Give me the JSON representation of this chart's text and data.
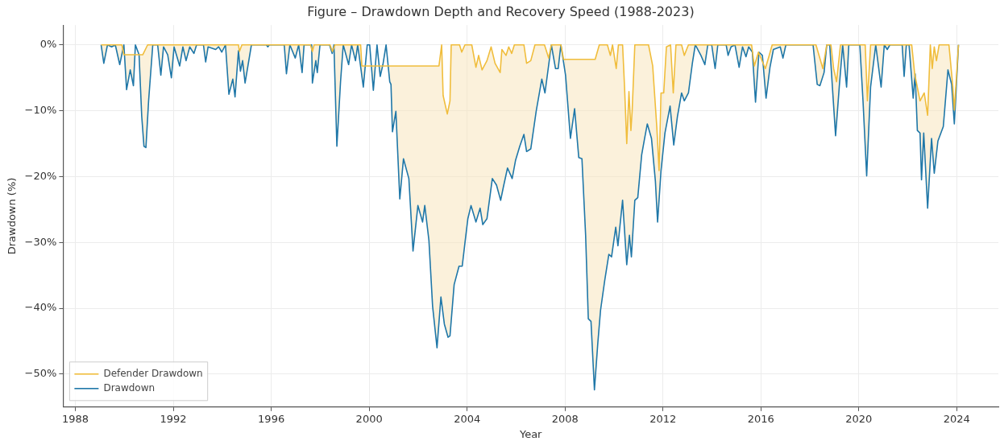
{
  "chart_data": {
    "type": "line",
    "title": "Figure – Drawdown Depth and Recovery Speed (1988-2023)",
    "xlabel": "Year",
    "ylabel": "Drawdown (%)",
    "xlim": [
      1987.5,
      2025.7
    ],
    "ylim": [
      -55,
      3
    ],
    "xticks": [
      1988,
      1992,
      1996,
      2000,
      2004,
      2008,
      2012,
      2016,
      2020,
      2024
    ],
    "yticks": [
      {
        "value": 0,
        "label": "0%"
      },
      {
        "value": -10,
        "label": "−10%"
      },
      {
        "value": -20,
        "label": "−20%"
      },
      {
        "value": -30,
        "label": "−30%"
      },
      {
        "value": -40,
        "label": "−40%"
      },
      {
        "value": -50,
        "label": "−50%"
      }
    ],
    "grid": true,
    "legend": "bottom left",
    "marker": "none",
    "line_style": "solid",
    "series": [
      {
        "name": "Defender Drawdown",
        "color": "#f0bd3c",
        "x": [
          1989.05,
          1989.9,
          1989.98,
          1990.75,
          1990.95,
          1994.66,
          1994.7,
          1994.8,
          1997.6,
          1997.68,
          1997.75,
          1998.4,
          1998.5,
          1998.6,
          1999.65,
          1999.7,
          2002.85,
          2002.96,
          2003.02,
          2003.19,
          2003.3,
          2003.35,
          2003.69,
          2003.78,
          2003.91,
          2004.19,
          2004.36,
          2004.47,
          2004.61,
          2004.81,
          2004.98,
          2005.14,
          2005.35,
          2005.42,
          2005.59,
          2005.7,
          2005.82,
          2005.93,
          2006.32,
          2006.43,
          2006.6,
          2006.77,
          2007.16,
          2007.33,
          2007.44,
          2007.83,
          2007.94,
          2009.23,
          2009.4,
          2009.73,
          2009.85,
          2009.94,
          2010.09,
          2010.18,
          2010.35,
          2010.43,
          2010.52,
          2010.61,
          2010.69,
          2010.74,
          2010.85,
          2011.41,
          2011.58,
          2011.75,
          2011.84,
          2011.92,
          2012.03,
          2012.14,
          2012.31,
          2012.42,
          2012.53,
          2012.76,
          2012.87,
          2013.04,
          2015.62,
          2015.73,
          2015.9,
          2016.18,
          2016.34,
          2016.46,
          2018.25,
          2018.53,
          2018.69,
          2018.86,
          2018.97,
          2019.09,
          2019.25,
          2020.26,
          2020.35,
          2020.48,
          2022.16,
          2022.28,
          2022.5,
          2022.67,
          2022.81,
          2022.92,
          2023.0,
          2023.08,
          2023.17,
          2023.28,
          2023.68,
          2023.84,
          2023.9,
          2024.07
        ],
        "values": [
          0,
          0,
          -1.5,
          -1.5,
          0,
          0,
          -1,
          0,
          0,
          -1,
          0,
          0,
          -1,
          0,
          0,
          -3.2,
          -3.2,
          0,
          -7.7,
          -10.5,
          -8.5,
          0,
          0,
          -1.1,
          0,
          0,
          -3.4,
          -1.6,
          -3.8,
          -2.4,
          -0.3,
          -2.8,
          -4.2,
          -0.7,
          -1.6,
          -0.3,
          -1.3,
          0,
          0,
          -2.8,
          -2.4,
          0,
          0,
          -2,
          0,
          0,
          -2.2,
          -2.2,
          0,
          0,
          -1.6,
          0,
          -3.6,
          0,
          0,
          -6.4,
          -15,
          -7.1,
          -13,
          -10.1,
          0,
          0,
          -3.2,
          -12.6,
          -19.1,
          -7.3,
          -7.3,
          -0.3,
          0,
          -7.3,
          0,
          0,
          -1.6,
          0,
          0,
          -3.2,
          -1.1,
          -3.6,
          -1.6,
          0,
          0,
          -3.6,
          0,
          0,
          -3.6,
          -5.6,
          0,
          0,
          -8.5,
          0,
          0,
          -4.4,
          -8.5,
          -7.3,
          -10.7,
          0,
          -3.6,
          -0.3,
          -2.4,
          0,
          0,
          -6.4,
          -9.9,
          0
        ]
      },
      {
        "name": "Drawdown",
        "color": "#1f77a8",
        "x": [
          1989.05,
          1989.16,
          1989.31,
          1989.48,
          1989.63,
          1989.81,
          1989.98,
          1990.09,
          1990.24,
          1990.37,
          1990.45,
          1990.6,
          1990.71,
          1990.8,
          1990.88,
          1990.99,
          1991.16,
          1991.36,
          1991.49,
          1991.6,
          1991.77,
          1991.92,
          1992.03,
          1992.26,
          1992.39,
          1992.52,
          1992.67,
          1992.84,
          1992.95,
          1993.23,
          1993.32,
          1993.42,
          1993.73,
          1993.85,
          1993.98,
          1994.13,
          1994.27,
          1994.43,
          1994.52,
          1994.66,
          1994.74,
          1994.83,
          1994.93,
          1995.19,
          1995.8,
          1995.86,
          1995.92,
          1996.53,
          1996.62,
          1996.76,
          1996.98,
          1997.12,
          1997.26,
          1997.34,
          1997.65,
          1997.68,
          1997.82,
          1997.88,
          1997.99,
          1998.38,
          1998.49,
          1998.56,
          1998.68,
          1998.83,
          1998.94,
          1999.16,
          1999.28,
          1999.44,
          1999.53,
          1999.64,
          1999.76,
          1999.92,
          2000.02,
          2000.17,
          2000.32,
          2000.45,
          2000.56,
          2000.69,
          2000.84,
          2000.89,
          2000.95,
          2001.09,
          2001.25,
          2001.4,
          2001.62,
          2001.79,
          2001.99,
          2002.18,
          2002.27,
          2002.44,
          2002.59,
          2002.77,
          2002.93,
          2003.07,
          2003.22,
          2003.3,
          2003.47,
          2003.67,
          2003.8,
          2003.91,
          2004.03,
          2004.16,
          2004.36,
          2004.53,
          2004.64,
          2004.81,
          2005.03,
          2005.2,
          2005.37,
          2005.48,
          2005.65,
          2005.84,
          2005.98,
          2006.15,
          2006.32,
          2006.43,
          2006.6,
          2006.82,
          2007.05,
          2007.18,
          2007.44,
          2007.61,
          2007.72,
          2007.83,
          2008.02,
          2008.22,
          2008.39,
          2008.56,
          2008.69,
          2008.84,
          2008.95,
          2009.06,
          2009.2,
          2009.34,
          2009.45,
          2009.62,
          2009.79,
          2009.9,
          2010.07,
          2010.16,
          2010.35,
          2010.52,
          2010.63,
          2010.71,
          2010.85,
          2010.97,
          2011.13,
          2011.25,
          2011.36,
          2011.53,
          2011.69,
          2011.78,
          2011.92,
          2012.08,
          2012.29,
          2012.44,
          2012.59,
          2012.76,
          2012.87,
          2013.04,
          2013.2,
          2013.32,
          2013.55,
          2013.71,
          2013.83,
          2013.99,
          2014.13,
          2014.24,
          2014.58,
          2014.66,
          2014.78,
          2014.94,
          2015.11,
          2015.25,
          2015.39,
          2015.5,
          2015.65,
          2015.78,
          2015.92,
          2016.06,
          2016.21,
          2016.37,
          2016.51,
          2016.79,
          2016.9,
          2017.02,
          2018.13,
          2018.3,
          2018.41,
          2018.58,
          2018.69,
          2018.81,
          2018.92,
          2019.05,
          2019.2,
          2019.34,
          2019.5,
          2019.59,
          2020.04,
          2020.17,
          2020.32,
          2020.48,
          2020.69,
          2020.91,
          2021.04,
          2021.16,
          2021.27,
          2021.77,
          2021.85,
          2021.94,
          2022.05,
          2022.22,
          2022.3,
          2022.39,
          2022.5,
          2022.56,
          2022.65,
          2022.81,
          2022.97,
          2023.08,
          2023.23,
          2023.45,
          2023.64,
          2023.79,
          2023.9,
          2024.07
        ],
        "values": [
          0,
          -2.8,
          0,
          -0.3,
          0,
          -3,
          0,
          -6.8,
          -3.8,
          -6.2,
          0,
          -1.5,
          -10.9,
          -15.4,
          -15.6,
          -8.5,
          0,
          0,
          -4.6,
          -0.3,
          -1.5,
          -5,
          -0.3,
          -3.2,
          -0.3,
          -2.4,
          -0.3,
          -1.3,
          0,
          0,
          -2.6,
          -0.3,
          -0.7,
          -0.3,
          -1.1,
          0,
          -7.5,
          -5.2,
          -7.9,
          -0.9,
          -4,
          -2.4,
          -5.8,
          0,
          0,
          -0.3,
          0,
          0,
          -4.4,
          0,
          -2,
          0,
          -4.2,
          0,
          0,
          -5.8,
          -2.4,
          -4.2,
          0,
          0,
          -1.3,
          0,
          -15.4,
          -5.6,
          0,
          -3,
          0,
          -2.4,
          0,
          -3,
          -6.4,
          0,
          0,
          -6.9,
          0,
          -4.8,
          -3,
          0,
          -5.6,
          -6,
          -13.2,
          -10.1,
          -23.4,
          -17.3,
          -20.3,
          -31.3,
          -24.4,
          -26.9,
          -24.4,
          -29.7,
          -39.7,
          -46,
          -38.3,
          -42.4,
          -44.4,
          -44.2,
          -36.4,
          -33.6,
          -33.6,
          -30.1,
          -26.4,
          -24.4,
          -26.9,
          -24.8,
          -27.3,
          -26.4,
          -20.3,
          -21.3,
          -23.6,
          -21.6,
          -18.7,
          -20.3,
          -17.5,
          -15.4,
          -13.6,
          -16.2,
          -15.8,
          -10.1,
          -5.2,
          -7.3,
          0,
          -3.6,
          -3.6,
          0,
          -4.6,
          -14.2,
          -9.7,
          -17.1,
          -17.3,
          -28.9,
          -41.6,
          -42,
          -52.4,
          -45.2,
          -40.3,
          -35.8,
          -31.8,
          -32.2,
          -27.7,
          -30.5,
          -23.6,
          -33.4,
          -28.9,
          -32.2,
          -23.6,
          -23.2,
          -16.7,
          -14.2,
          -12,
          -14.2,
          -20.7,
          -26.9,
          -19.1,
          -13.4,
          -9.3,
          -15.2,
          -10.9,
          -7.3,
          -8.5,
          -7.3,
          -2.8,
          0,
          -1.6,
          -3,
          0,
          0,
          -3.6,
          0,
          0,
          -1.6,
          -0.3,
          0,
          -3.4,
          -0.3,
          -1.8,
          -0.3,
          -1.1,
          -8.7,
          -1.1,
          -1.6,
          -8.1,
          -3.4,
          -0.7,
          -0.3,
          -2,
          0,
          0,
          -6,
          -6.2,
          -4.2,
          0,
          0,
          -6.4,
          -13.8,
          -6.4,
          0,
          -6.4,
          0,
          0,
          -8.5,
          -19.9,
          -6.4,
          0,
          -6.4,
          0,
          -0.7,
          0,
          0,
          -4.8,
          0,
          0,
          -8.1,
          -4.4,
          -13,
          -13.4,
          -20.5,
          -13.4,
          -24.8,
          -14.2,
          -19.5,
          -14.6,
          -12.4,
          -3.8,
          -6,
          -12,
          0
        ]
      }
    ]
  }
}
